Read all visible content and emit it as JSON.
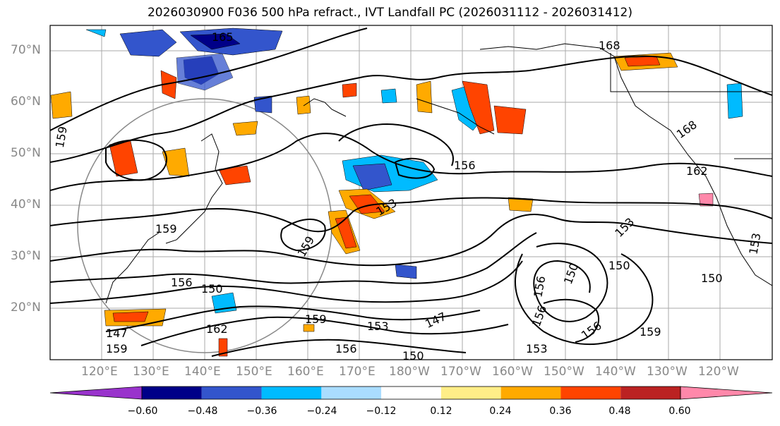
{
  "title": "2026030900 F036 500 hPa refract., IVT Landfall PC (2026031112 - 2026031412)",
  "map": {
    "lat_labels": [
      "70°N",
      "60°N",
      "50°N",
      "40°N",
      "30°N",
      "20°N"
    ],
    "lon_labels": [
      "120°E",
      "130°E",
      "140°E",
      "150°E",
      "160°E",
      "170°E",
      "180°W",
      "170°W",
      "160°W",
      "150°W",
      "140°W",
      "130°W",
      "120°W"
    ],
    "contour_labels": [
      "165",
      "168",
      "156",
      "162",
      "168",
      "159",
      "159",
      "159",
      "153",
      "153",
      "156",
      "150",
      "150",
      "150",
      "156",
      "150",
      "159",
      "153",
      "147",
      "162",
      "156",
      "150",
      "153",
      "159",
      "156",
      "147",
      "156",
      "153",
      "159"
    ]
  },
  "colorbar": {
    "colors": [
      "#9933cc",
      "#000088",
      "#3355cc",
      "#00bbff",
      "#aaddff",
      "#ffffff",
      "#ffee88",
      "#ffaa00",
      "#ff4400",
      "#bb2222",
      "#ff88aa"
    ],
    "ticks": [
      "−0.60",
      "−0.48",
      "−0.36",
      "−0.24",
      "−0.12",
      "0.12",
      "0.24",
      "0.36",
      "0.48",
      "0.60"
    ]
  }
}
